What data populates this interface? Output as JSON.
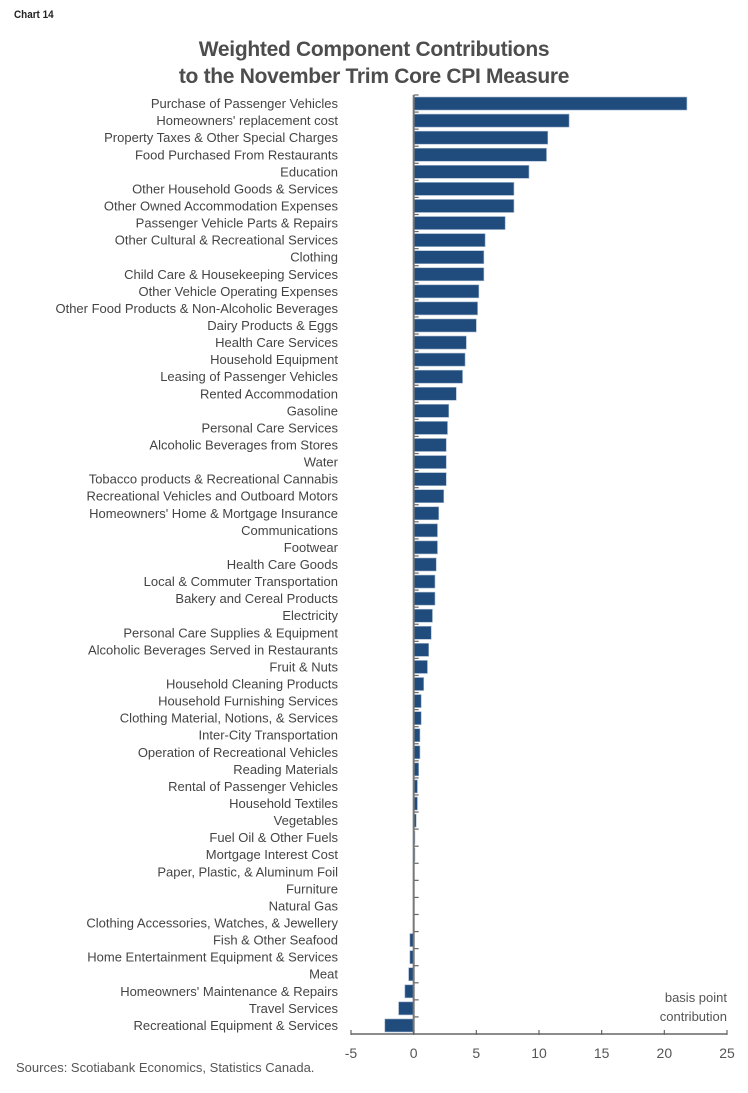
{
  "chart_label": "Chart 14",
  "sources": "Sources: Scotiabank Economics, Statistics Canada.",
  "chart_data": {
    "type": "bar",
    "orientation": "horizontal",
    "title": [
      "Weighted Component Contributions",
      "to the November Trim Core CPI Measure"
    ],
    "xlabel": "basis point contribution",
    "xlabel_lines": [
      "basis point",
      "contribution"
    ],
    "xlim": [
      -5,
      25
    ],
    "xticks": [
      -5,
      0,
      5,
      10,
      15,
      20,
      25
    ],
    "bar_color": "#1f4b7d",
    "categories": [
      "Purchase of Passenger Vehicles",
      "Homeowners' replacement cost",
      "Property Taxes & Other Special Charges",
      "Food Purchased From Restaurants",
      "Education",
      "Other Household Goods & Services",
      "Other Owned Accommodation Expenses",
      "Passenger Vehicle Parts & Repairs",
      "Other Cultural & Recreational Services",
      "Clothing",
      "Child Care & Housekeeping Services",
      "Other Vehicle Operating Expenses",
      "Other Food Products & Non-Alcoholic Beverages",
      "Dairy Products & Eggs",
      "Health Care Services",
      "Household Equipment",
      "Leasing of Passenger Vehicles",
      "Rented Accommodation",
      "Gasoline",
      "Personal Care Services",
      "Alcoholic Beverages from Stores",
      "Water",
      "Tobacco products & Recreational Cannabis",
      "Recreational Vehicles and Outboard Motors",
      "Homeowners' Home & Mortgage Insurance",
      "Communications",
      "Footwear",
      "Health Care Goods",
      "Local & Commuter Transportation",
      "Bakery and Cereal Products",
      "Electricity",
      "Personal Care Supplies & Equipment",
      "Alcoholic Beverages Served in Restaurants",
      "Fruit & Nuts",
      "Household Cleaning Products",
      "Household Furnishing Services",
      "Clothing Material, Notions, & Services",
      "Inter-City Transportation",
      "Operation of Recreational Vehicles",
      "Reading Materials",
      "Rental of Passenger Vehicles",
      "Household Textiles",
      "Vegetables",
      "Fuel Oil & Other Fuels",
      "Mortgage Interest Cost",
      "Paper, Plastic, & Aluminum Foil",
      "Furniture",
      "Natural Gas",
      "Clothing Accessories, Watches, & Jewellery",
      "Fish & Other Seafood",
      "Home Entertainment Equipment & Services",
      "Meat",
      "Homeowners' Maintenance & Repairs",
      "Travel Services",
      "Recreational Equipment & Services"
    ],
    "values": [
      21.8,
      12.4,
      10.7,
      10.6,
      9.2,
      8.0,
      8.0,
      7.3,
      5.7,
      5.6,
      5.6,
      5.2,
      5.1,
      5.0,
      4.2,
      4.1,
      3.9,
      3.4,
      2.8,
      2.7,
      2.6,
      2.6,
      2.6,
      2.4,
      2.0,
      1.9,
      1.9,
      1.8,
      1.7,
      1.7,
      1.5,
      1.4,
      1.2,
      1.1,
      0.8,
      0.6,
      0.6,
      0.5,
      0.5,
      0.4,
      0.3,
      0.3,
      0.2,
      0.1,
      0.1,
      0.0,
      0.0,
      0.0,
      0.0,
      -0.3,
      -0.3,
      -0.4,
      -0.7,
      -1.2,
      -2.3
    ]
  }
}
